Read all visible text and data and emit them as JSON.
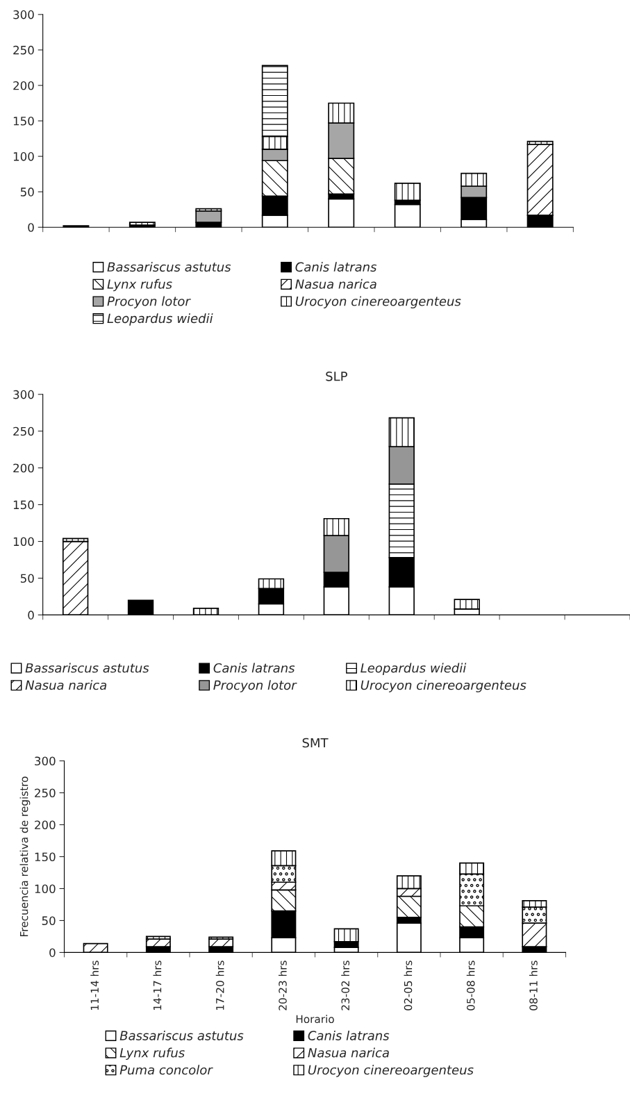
{
  "chart_data": [
    {
      "type": "bar",
      "stacked": true,
      "categories": [
        null,
        null,
        null,
        null,
        null,
        null,
        null,
        null
      ],
      "ylim": [
        0,
        300
      ],
      "yticks": [
        0,
        50,
        100,
        150,
        200,
        250,
        300
      ],
      "tick_labels": "y",
      "legend": "bottom",
      "series": [
        {
          "name": "Bassariscus astutus",
          "color": "#ffffff",
          "values": [
            null,
            null,
            null,
            17,
            40,
            32,
            11,
            null
          ]
        },
        {
          "name": "Canis latrans",
          "color": "#000000",
          "values": [
            2,
            3,
            7,
            27,
            7,
            6,
            31,
            17
          ]
        },
        {
          "name": "Lynx rufus",
          "color": "#000000",
          "values": [
            null,
            null,
            null,
            50,
            50,
            null,
            null,
            null
          ]
        },
        {
          "name": "Nasua narica",
          "color": "#000000",
          "values": [
            null,
            null,
            null,
            null,
            null,
            null,
            null,
            100
          ]
        },
        {
          "name": "Procyon lotor",
          "color": "#a6a6a6",
          "values": [
            null,
            null,
            16,
            16,
            50,
            null,
            16,
            null
          ]
        },
        {
          "name": "Urocyon cinereoargenteus",
          "color": "#000000",
          "values": [
            null,
            4,
            3,
            18,
            28,
            24,
            18,
            4
          ]
        },
        {
          "name": "Leopardus wiedii",
          "color": "#000000",
          "values": [
            null,
            null,
            null,
            100,
            null,
            null,
            null,
            null
          ]
        }
      ]
    },
    {
      "type": "bar",
      "stacked": true,
      "title": "SLP",
      "categories": [
        null,
        null,
        null,
        null,
        null,
        null,
        null,
        null,
        null
      ],
      "ylim": [
        0,
        300
      ],
      "yticks": [
        0,
        50,
        100,
        150,
        200,
        250,
        300
      ],
      "tick_labels": "y",
      "legend": "bottom",
      "series": [
        {
          "name": "Bassariscus astutus",
          "color": "#ffffff",
          "values": [
            null,
            null,
            null,
            15,
            38,
            38,
            8,
            null,
            null
          ]
        },
        {
          "name": "Canis latrans",
          "color": "#000000",
          "values": [
            null,
            20,
            null,
            21,
            20,
            40,
            null,
            null,
            null
          ]
        },
        {
          "name": "Leopardus wiedii",
          "color": "#000000",
          "values": [
            null,
            null,
            null,
            null,
            null,
            100,
            null,
            null,
            null
          ]
        },
        {
          "name": "Nasua narica",
          "color": "#000000",
          "values": [
            100,
            null,
            null,
            null,
            null,
            null,
            null,
            null,
            null
          ]
        },
        {
          "name": "Procyon lotor",
          "color": "#969696",
          "values": [
            null,
            null,
            null,
            null,
            50,
            51,
            null,
            null,
            null
          ]
        },
        {
          "name": "Urocyon cinereoargenteus",
          "color": "#000000",
          "values": [
            4,
            null,
            9,
            13,
            23,
            39,
            13,
            null,
            null
          ]
        }
      ]
    },
    {
      "type": "bar",
      "stacked": true,
      "title": "SMT",
      "xlabel": "Horario",
      "ylabel": "Frecuencia relativa de registro",
      "categories": [
        "11-14 hrs",
        "14-17 hrs",
        "17-20 hrs",
        "20-23 hrs",
        "23-02 hrs",
        "02-05 hrs",
        "05-08 hrs",
        "08-11 hrs"
      ],
      "ylim": [
        0,
        300
      ],
      "yticks": [
        0,
        50,
        100,
        150,
        200,
        250,
        300
      ],
      "legend": "bottom",
      "series": [
        {
          "name": "Bassariscus astutus",
          "color": "#ffffff",
          "values": [
            null,
            null,
            null,
            23,
            8,
            46,
            23,
            null
          ]
        },
        {
          "name": "Canis latrans",
          "color": "#000000",
          "values": [
            null,
            9,
            9,
            42,
            9,
            9,
            17,
            9
          ]
        },
        {
          "name": "Lynx rufus",
          "color": "#000000",
          "values": [
            null,
            null,
            null,
            33,
            null,
            33,
            33,
            null
          ]
        },
        {
          "name": "Nasua narica",
          "color": "#000000",
          "values": [
            14,
            12,
            12,
            12,
            null,
            12,
            null,
            37
          ]
        },
        {
          "name": "Puma concolor",
          "color": "#000000",
          "values": [
            null,
            null,
            null,
            26,
            null,
            null,
            50,
            25
          ]
        },
        {
          "name": "Urocyon cinereoargenteus",
          "color": "#000000",
          "values": [
            null,
            4,
            3,
            23,
            20,
            20,
            17,
            10
          ]
        }
      ]
    }
  ]
}
